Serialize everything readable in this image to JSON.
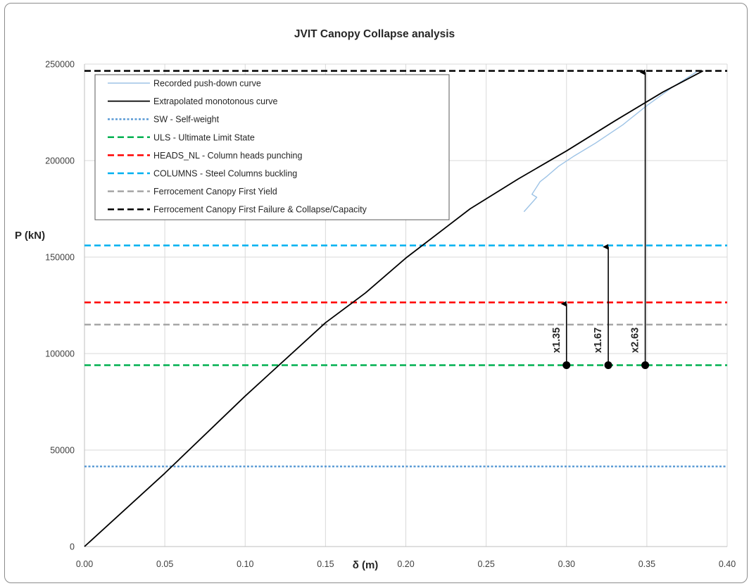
{
  "chart_data": {
    "type": "line",
    "title": "JVIT Canopy Collapse analysis",
    "xlabel": "δ (m)",
    "ylabel": "P (kN)",
    "xlim": [
      0,
      0.4
    ],
    "ylim": [
      0,
      250000
    ],
    "x_ticks": [
      "0.00",
      "0.05",
      "0.10",
      "0.15",
      "0.20",
      "0.25",
      "0.30",
      "0.35",
      "0.40"
    ],
    "y_ticks": [
      "0",
      "50000",
      "100000",
      "150000",
      "200000",
      "250000"
    ],
    "grid": true,
    "legend_position": "top-left",
    "series": [
      {
        "name": "Recorded push-down curve",
        "style": "solid",
        "color": "#9dc3e6",
        "x": [
          0.2735,
          0.2815,
          0.2785,
          0.2835,
          0.288,
          0.295,
          0.305,
          0.318,
          0.335,
          0.35,
          0.365,
          0.381
        ],
        "y": [
          173500,
          181000,
          182500,
          189000,
          192000,
          197000,
          202500,
          209000,
          218500,
          228500,
          237500,
          246000
        ]
      },
      {
        "name": "Extrapolated monotonous curve",
        "style": "solid",
        "color": "#000000",
        "x": [
          0,
          0.05,
          0.1,
          0.15,
          0.175,
          0.2,
          0.24,
          0.27,
          0.3,
          0.33,
          0.36,
          0.385
        ],
        "y": [
          0,
          38000,
          78000,
          116000,
          131500,
          149500,
          175000,
          190500,
          205000,
          220500,
          235500,
          246500
        ]
      },
      {
        "name": "SW - Self-weight",
        "style": "dotted",
        "color": "#5b9bd5",
        "y_const": 41500
      },
      {
        "name": "ULS - Ultimate Limit State",
        "style": "dashed",
        "color": "#00b050",
        "y_const": 94000
      },
      {
        "name": "HEADS_NL - Column heads punching",
        "style": "dashed",
        "color": "#ff0000",
        "y_const": 126500
      },
      {
        "name": "COLUMNS - Steel Columns buckling",
        "style": "dashed",
        "color": "#00b0f0",
        "y_const": 156000
      },
      {
        "name": "Ferrocement Canopy First Yield",
        "style": "dashed",
        "color": "#a6a6a6",
        "y_const": 115000
      },
      {
        "name": "Ferrocement Canopy First Failure & Collapse/Capacity",
        "style": "dashed",
        "color": "#000000",
        "y_const": 246500
      }
    ],
    "annotations": [
      {
        "text": "x1.35",
        "x": 0.3,
        "y_start": 94000,
        "y_end": 126500
      },
      {
        "text": "x1.67",
        "x": 0.326,
        "y_start": 94000,
        "y_end": 156000
      },
      {
        "text": "x2.63",
        "x": 0.349,
        "y_start": 94000,
        "y_end": 246500
      }
    ]
  }
}
